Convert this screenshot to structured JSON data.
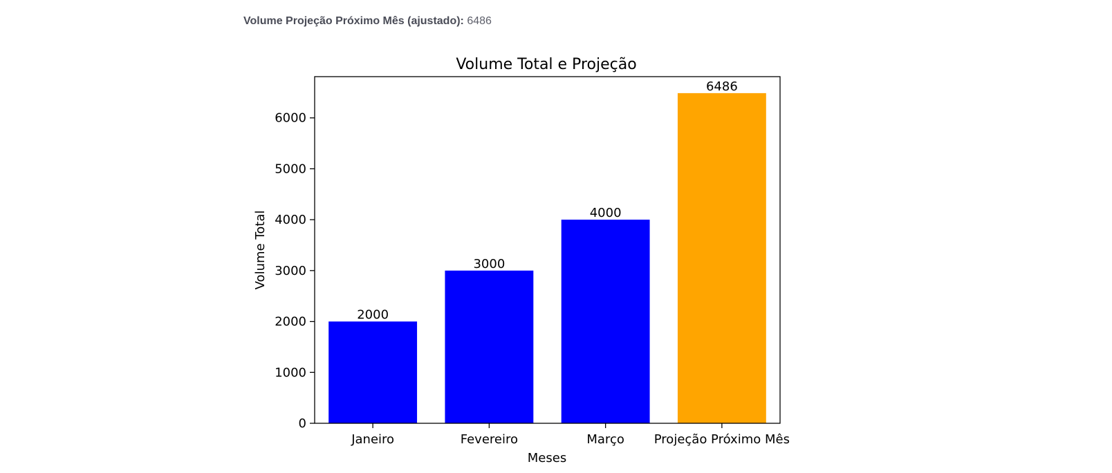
{
  "summary": {
    "label": "Volume Projeção Próximo Mês (ajustado):",
    "value": "6486"
  },
  "chart_data": {
    "type": "bar",
    "title": "Volume Total e Projeção",
    "xlabel": "Meses",
    "ylabel": "Volume Total",
    "categories": [
      "Janeiro",
      "Fevereiro",
      "Março",
      "Projeção Próximo Mês"
    ],
    "values": [
      2000,
      3000,
      4000,
      6486
    ],
    "data_labels": [
      "2000",
      "3000",
      "4000",
      "6486"
    ],
    "colors": [
      "#0000ff",
      "#0000ff",
      "#0000ff",
      "#ffa500"
    ],
    "ylim": [
      0,
      6810
    ],
    "yticks": [
      0,
      1000,
      2000,
      3000,
      4000,
      5000,
      6000
    ],
    "grid": false
  }
}
